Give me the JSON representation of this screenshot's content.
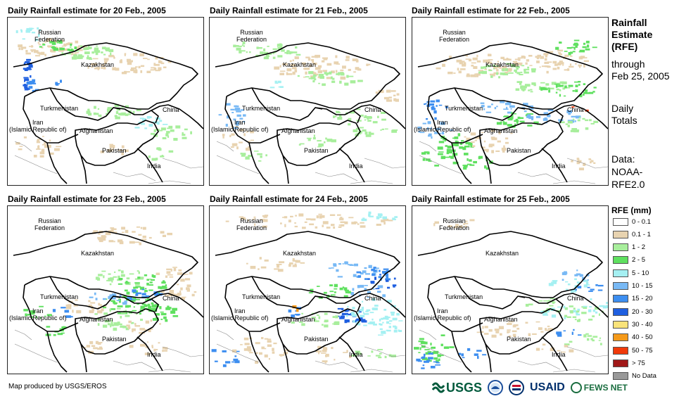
{
  "panels": [
    {
      "title": "Daily Rainfall estimate for 20 Feb., 2005"
    },
    {
      "title": "Daily Rainfall estimate for 21 Feb., 2005"
    },
    {
      "title": "Daily Rainfall estimate for 22 Feb., 2005"
    },
    {
      "title": "Daily Rainfall estimate for 23 Feb., 2005"
    },
    {
      "title": "Daily Rainfall estimate for 24 Feb., 2005"
    },
    {
      "title": "Daily Rainfall estimate for 25 Feb., 2005"
    }
  ],
  "map_labels": {
    "russia": "Russian\nFederation",
    "kazakhstan": "Kazakhstan",
    "turkmenistan": "Turkmenistan",
    "iran": "Iran\n(Islamic Republic of)",
    "afghanistan": "Afghanistan",
    "pakistan": "Pakistan",
    "china": "China",
    "india": "India"
  },
  "sidebar": {
    "title_line1": "Rainfall",
    "title_line2": "Estimate",
    "title_line3": "(RFE)",
    "through": "through",
    "date": "Feb 25, 2005",
    "daily": "Daily",
    "totals": "Totals",
    "data": "Data:",
    "source1": "NOAA-",
    "source2": "RFE2.0"
  },
  "legend": {
    "title": "RFE (mm)",
    "items": [
      {
        "label": "0 - 0.1",
        "color": "#ffffff"
      },
      {
        "label": "0.1 - 1",
        "color": "#e8d3b0"
      },
      {
        "label": "1 - 2",
        "color": "#a8ee9c"
      },
      {
        "label": "2 - 5",
        "color": "#5fe05f"
      },
      {
        "label": "5 - 10",
        "color": "#a5f0f2"
      },
      {
        "label": "10 - 15",
        "color": "#78b9f5"
      },
      {
        "label": "15 - 20",
        "color": "#3d8ef0"
      },
      {
        "label": "20 - 30",
        "color": "#1f5fe0"
      },
      {
        "label": "30 - 40",
        "color": "#f9e37a"
      },
      {
        "label": "40 - 50",
        "color": "#f59a1a"
      },
      {
        "label": "50 - 75",
        "color": "#f03a0a"
      },
      {
        "label": "> 75",
        "color": "#a01818"
      },
      {
        "label": "No Data",
        "color": "#999999"
      }
    ]
  },
  "footer": {
    "credit": "Map produced by USGS/EROS",
    "logo_usgs": "USGS",
    "logo_usaid": "USAID",
    "logo_fews": "FEWS NET"
  }
}
